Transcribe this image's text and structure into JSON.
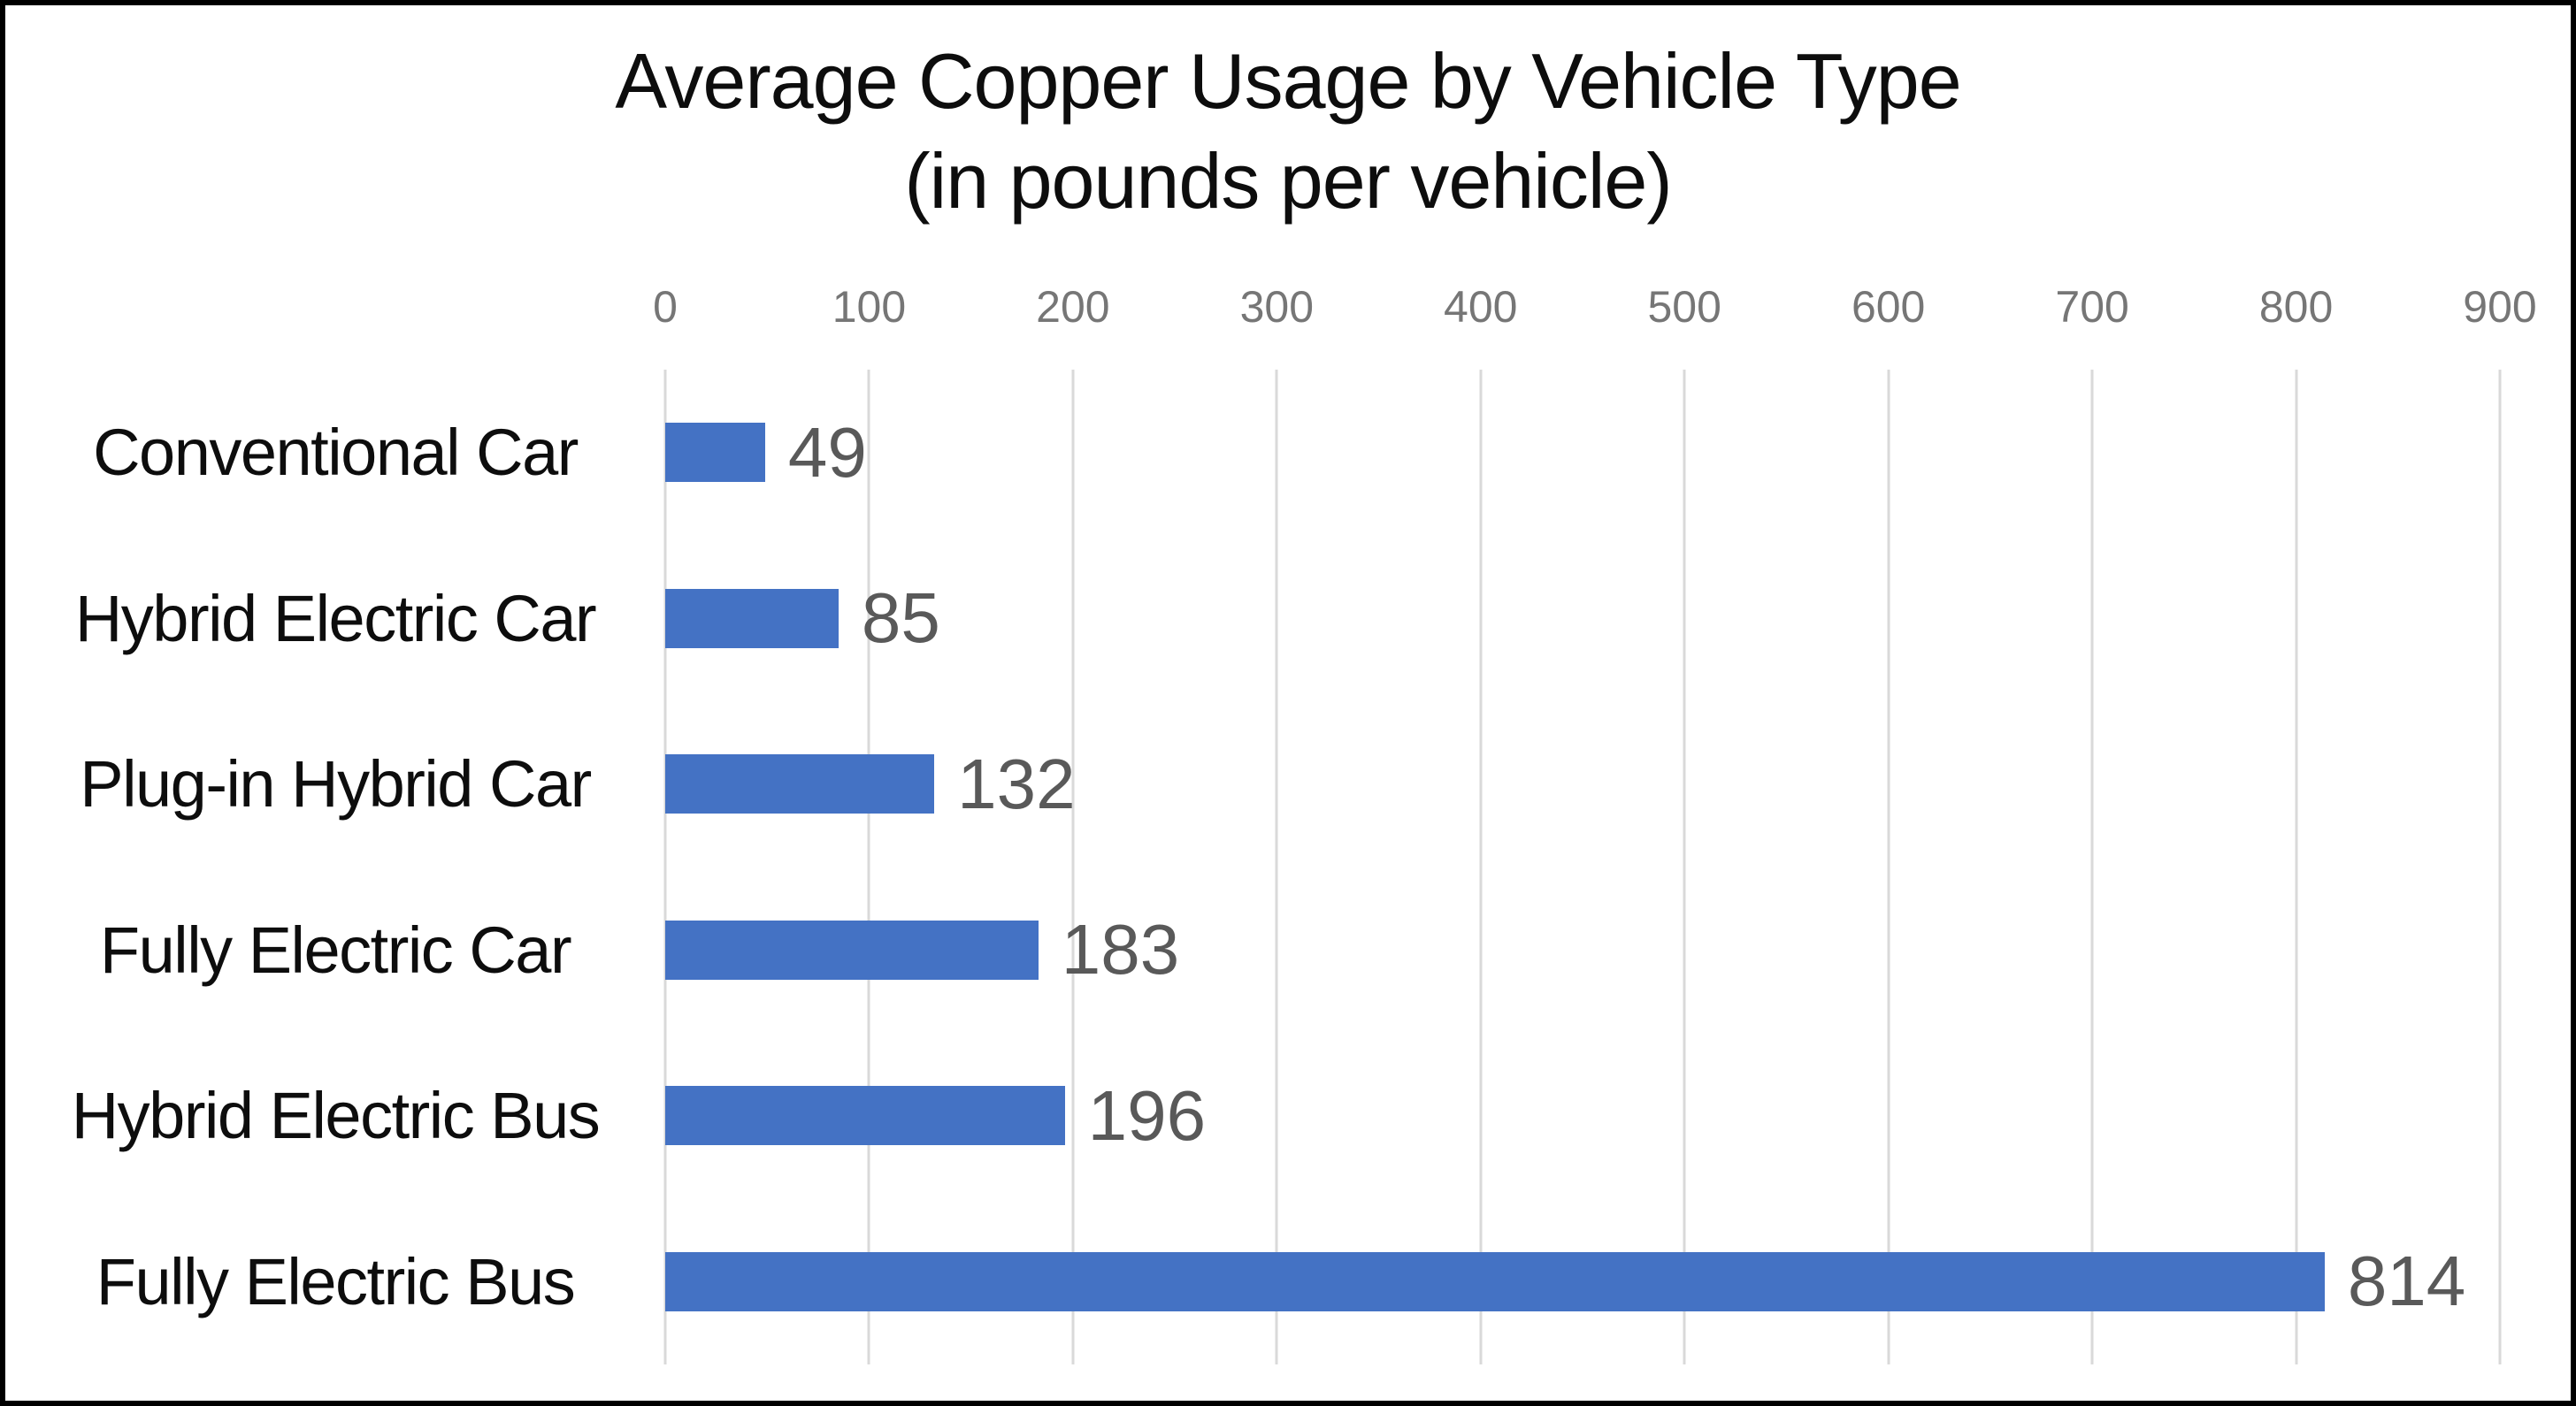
{
  "chart": {
    "title_line1": "Average Copper Usage by Vehicle Type",
    "title_line2": "(in pounds per vehicle)"
  },
  "chart_data": {
    "type": "bar",
    "orientation": "horizontal",
    "title": "Average Copper Usage by Vehicle Type (in pounds per vehicle)",
    "categories": [
      "Conventional Car",
      "Hybrid Electric Car",
      "Plug-in Hybrid Car",
      "Fully Electric Car",
      "Hybrid Electric Bus",
      "Fully Electric Bus"
    ],
    "values": [
      49,
      85,
      132,
      183,
      196,
      814
    ],
    "data_labels": [
      49,
      85,
      132,
      183,
      196,
      814
    ],
    "xlabel": "",
    "ylabel": "",
    "xlim": [
      0,
      900
    ],
    "xticks": [
      0,
      100,
      200,
      300,
      400,
      500,
      600,
      700,
      800,
      900
    ],
    "axis_position": "top",
    "grid": true,
    "legend": false,
    "colors": {
      "bar": "#4472C4",
      "grid": "#D9D9D9",
      "tick_label": "#767676",
      "data_label": "#595959",
      "category_label": "#0D0D0D",
      "title": "#0D0D0D",
      "frame_border": "#000000",
      "background": "#FFFFFF"
    }
  }
}
